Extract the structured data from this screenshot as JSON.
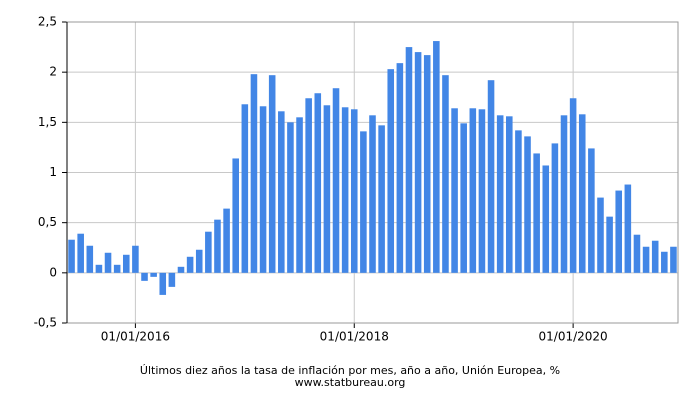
{
  "chart_data": {
    "type": "bar",
    "title": "Últimos diez años la tasa de inflación por mes, año a año, Unión Europea, %",
    "subtitle": "www.statbureau.org",
    "categories": [
      null,
      null,
      null,
      null,
      null,
      null,
      null,
      "01/01/2016",
      null,
      null,
      null,
      null,
      null,
      null,
      null,
      null,
      null,
      null,
      null,
      null,
      null,
      null,
      null,
      null,
      null,
      null,
      null,
      null,
      null,
      null,
      null,
      "01/01/2018",
      null,
      null,
      null,
      null,
      null,
      null,
      null,
      null,
      null,
      null,
      null,
      null,
      null,
      null,
      null,
      null,
      null,
      null,
      null,
      null,
      null,
      null,
      null,
      "01/01/2020",
      null,
      null,
      null,
      null,
      null,
      null,
      null,
      null,
      null,
      null,
      null
    ],
    "values": [
      0.33,
      0.39,
      0.27,
      0.08,
      0.2,
      0.08,
      0.18,
      0.27,
      -0.08,
      -0.04,
      -0.22,
      -0.14,
      0.06,
      0.16,
      0.23,
      0.41,
      0.53,
      0.64,
      1.14,
      1.68,
      1.98,
      1.66,
      1.97,
      1.61,
      1.5,
      1.55,
      1.74,
      1.79,
      1.67,
      1.84,
      1.65,
      1.63,
      1.41,
      1.57,
      1.47,
      2.03,
      2.09,
      2.25,
      2.2,
      2.17,
      2.31,
      1.97,
      1.64,
      1.49,
      1.64,
      1.63,
      1.92,
      1.57,
      1.56,
      1.42,
      1.36,
      1.19,
      1.07,
      1.29,
      1.57,
      1.74,
      1.58,
      1.24,
      0.75,
      0.56,
      0.82,
      0.88,
      0.38,
      0.26,
      0.32,
      0.21,
      0.26
    ],
    "color": "#4286e6",
    "ylim": [
      -0.5,
      2.5
    ],
    "yticks": [
      {
        "value": -0.5,
        "label": "-0,5"
      },
      0,
      {
        "value": 0.5,
        "label": "0,5"
      },
      1,
      {
        "value": 1.5,
        "label": "1,5"
      },
      2,
      {
        "value": 2.5,
        "label": "2,5"
      }
    ],
    "grid": true
  }
}
